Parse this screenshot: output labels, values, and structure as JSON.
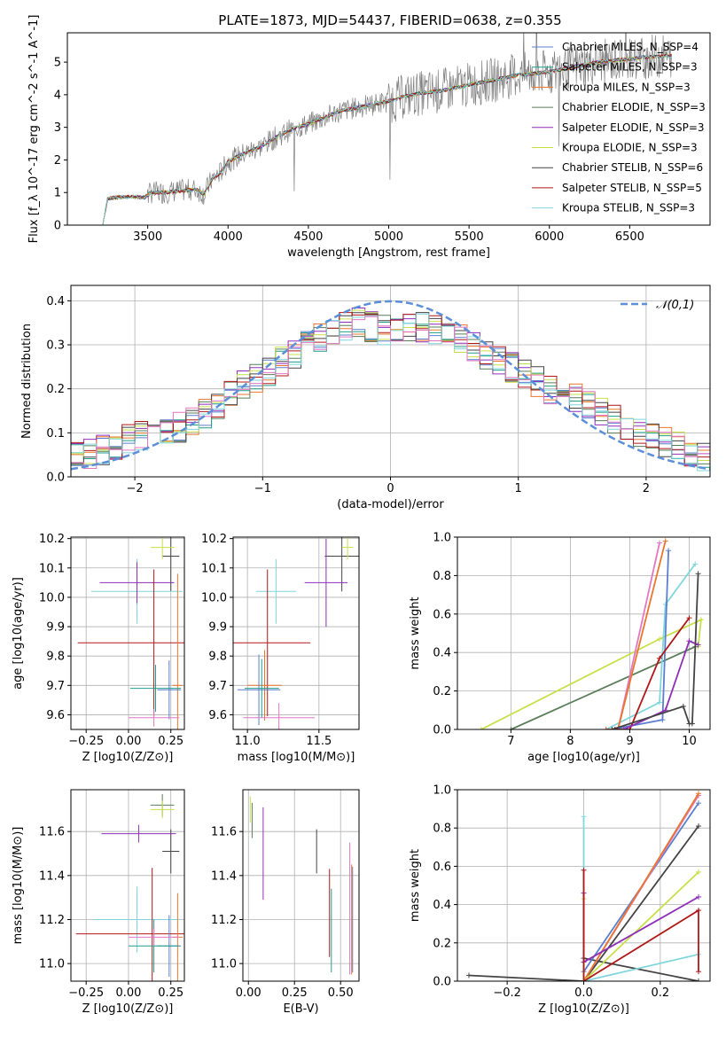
{
  "figure_title": "PLATE=1873, MJD=54437, FIBERID=0638, z=0.355",
  "colors": {
    "chabrier_miles": "#5b7fce",
    "salpeter_miles": "#1f9e89",
    "kroupa_miles": "#e8762c",
    "chabrier_elodie": "#5a7d5a",
    "salpeter_elodie": "#8e2fb8",
    "kroupa_elodie": "#c7e04a",
    "chabrier_stelib": "#444444",
    "salpeter_stelib": "#b01818",
    "kroupa_stelib": "#7fd6dc",
    "pink": "#e377c2",
    "gauss": "#5b8fd9",
    "data": "#808080"
  },
  "chart_data": [
    {
      "type": "line",
      "id": "spectrum",
      "title": "PLATE=1873, MJD=54437, FIBERID=0638, z=0.355",
      "xlabel": "wavelength [Angstrom, rest frame]",
      "ylabel": "Flux [f_λ 10^-17 erg cm^-2 s^-1 A^-1]",
      "xlim": [
        3000,
        7000
      ],
      "ylim": [
        0,
        5.9
      ],
      "xticks": [
        3500,
        4000,
        4500,
        5000,
        5500,
        6000,
        6500
      ],
      "yticks": [
        0,
        1,
        2,
        3,
        4,
        5
      ],
      "grid": false,
      "legend_position": "top-right",
      "legend": [
        {
          "label": "Chabrier MILES, N_SSP=4",
          "color": "#5b7fce"
        },
        {
          "label": "Salpeter MILES, N_SSP=3",
          "color": "#1f9e89"
        },
        {
          "label": "Kroupa MILES, N_SSP=3",
          "color": "#e8762c"
        },
        {
          "label": "Chabrier ELODIE, N_SSP=3",
          "color": "#5a7d5a"
        },
        {
          "label": "Salpeter ELODIE, N_SSP=3",
          "color": "#8e2fb8"
        },
        {
          "label": "Kroupa ELODIE, N_SSP=3",
          "color": "#c7e04a"
        },
        {
          "label": "Chabrier STELIB, N_SSP=6",
          "color": "#444444"
        },
        {
          "label": "Salpeter STELIB, N_SSP=5",
          "color": "#b01818"
        },
        {
          "label": "Kroupa STELIB, N_SSP=3",
          "color": "#7fd6dc"
        }
      ],
      "model_continuum": {
        "x": [
          3220,
          3250,
          3300,
          3400,
          3480,
          3520,
          3600,
          3700,
          3800,
          3850,
          3900,
          3950,
          4000,
          4100,
          4200,
          4300,
          4400,
          4500,
          4600,
          4700,
          4800,
          4900,
          5000,
          5100,
          5200,
          5300,
          5400,
          5500,
          5600,
          5700,
          5800,
          5900,
          6000,
          6100,
          6200,
          6300,
          6400,
          6500,
          6600,
          6750
        ],
        "y": [
          0,
          0.8,
          0.85,
          0.87,
          0.85,
          1.0,
          1.0,
          1.05,
          1.1,
          0.95,
          1.4,
          1.6,
          1.95,
          2.2,
          2.4,
          2.7,
          2.95,
          3.1,
          3.3,
          3.5,
          3.6,
          3.7,
          3.8,
          3.95,
          4.05,
          4.1,
          4.2,
          4.3,
          4.4,
          4.5,
          4.6,
          4.65,
          4.7,
          4.8,
          4.9,
          5.0,
          5.05,
          5.1,
          5.15,
          5.2
        ]
      }
    },
    {
      "type": "line",
      "id": "residual-histogram",
      "xlabel": "(data-model)/error",
      "ylabel": "Normed distribution",
      "xlim": [
        -2.5,
        2.5
      ],
      "ylim": [
        0,
        0.435
      ],
      "xticks": [
        -2,
        -1,
        0,
        1,
        2
      ],
      "yticks": [
        0.0,
        0.1,
        0.2,
        0.3,
        0.4
      ],
      "grid": true,
      "legend_position": "top-right",
      "gaussian_label": "𝒩(0,1)",
      "histogram_envelope": {
        "x": [
          -2.5,
          -2.25,
          -2.0,
          -1.75,
          -1.5,
          -1.25,
          -1.0,
          -0.75,
          -0.5,
          -0.25,
          0.0,
          0.25,
          0.5,
          0.75,
          1.0,
          1.25,
          1.5,
          1.75,
          2.0,
          2.25,
          2.5
        ],
        "y": [
          0.04,
          0.06,
          0.09,
          0.1,
          0.13,
          0.19,
          0.23,
          0.28,
          0.33,
          0.35,
          0.33,
          0.34,
          0.32,
          0.28,
          0.24,
          0.2,
          0.17,
          0.13,
          0.09,
          0.07,
          0.04
        ]
      }
    },
    {
      "type": "scatter",
      "id": "age-vs-metallicity",
      "xlabel": "Z [log10(Z/Z⊙)]",
      "ylabel": "age [log10(age/yr)]",
      "xlim": [
        -0.34,
        0.33
      ],
      "ylim": [
        9.55,
        10.205
      ],
      "xticks": [
        -0.25,
        0.0,
        0.25
      ],
      "yticks": [
        9.6,
        9.7,
        9.8,
        9.9,
        10.0,
        10.1,
        10.2
      ],
      "grid": true,
      "points": [
        {
          "x": 0.25,
          "y": 10.14,
          "xerr": 0.05,
          "yerr": 0.12,
          "color": "#444444"
        },
        {
          "x": 0.2,
          "y": 10.17,
          "xerr": 0.07,
          "yerr": 0.04,
          "color": "#c7e04a"
        },
        {
          "x": 0.05,
          "y": 10.02,
          "xerr": 0.27,
          "yerr": 0.11,
          "color": "#7fd6dc"
        },
        {
          "x": 0.05,
          "y": 10.05,
          "xerr": 0.22,
          "yerr": 0.07,
          "color": "#8e2fb8"
        },
        {
          "x": 0.15,
          "y": 9.845,
          "xerr": 0.45,
          "yerr": 0.25,
          "color": "#b01818"
        },
        {
          "x": 0.29,
          "y": 9.7,
          "xerr": 0.03,
          "yerr": 0.38,
          "color": "#e8762c"
        },
        {
          "x": 0.24,
          "y": 9.685,
          "xerr": 0.07,
          "yerr": 0.1,
          "color": "#5b7fce"
        },
        {
          "x": 0.16,
          "y": 9.69,
          "xerr": 0.15,
          "yerr": 0.08,
          "color": "#1f9e89"
        },
        {
          "x": 0.15,
          "y": 9.59,
          "xerr": 0.15,
          "yerr": 0.03,
          "color": "#e377c2"
        }
      ]
    },
    {
      "type": "scatter",
      "id": "age-vs-mass",
      "xlabel": "mass [log10(M/M⊙)]",
      "ylabel": "",
      "xlim": [
        10.9,
        11.78
      ],
      "ylim": [
        9.55,
        10.205
      ],
      "xticks": [
        11.0,
        11.5
      ],
      "yticks": [
        9.6,
        9.7,
        9.8,
        9.9,
        10.0,
        10.1,
        10.2
      ],
      "grid": true,
      "points": [
        {
          "x": 11.66,
          "y": 10.14,
          "xerr": 0.12,
          "yerr": 0.12,
          "color": "#444444"
        },
        {
          "x": 11.7,
          "y": 10.17,
          "xerr": 0.04,
          "yerr": 0.04,
          "color": "#c7e04a"
        },
        {
          "x": 11.2,
          "y": 10.02,
          "xerr": 0.14,
          "yerr": 0.11,
          "color": "#7fd6dc"
        },
        {
          "x": 11.55,
          "y": 10.05,
          "xerr": 0.15,
          "yerr": 0.15,
          "color": "#8e2fb8"
        },
        {
          "x": 11.14,
          "y": 9.845,
          "xerr": 0.3,
          "yerr": 0.25,
          "color": "#b01818"
        },
        {
          "x": 11.12,
          "y": 9.7,
          "xerr": 0.12,
          "yerr": 0.12,
          "color": "#e8762c"
        },
        {
          "x": 11.08,
          "y": 9.685,
          "xerr": 0.15,
          "yerr": 0.12,
          "color": "#5b7fce"
        },
        {
          "x": 11.1,
          "y": 9.69,
          "xerr": 0.12,
          "yerr": 0.1,
          "color": "#1f9e89"
        },
        {
          "x": 11.22,
          "y": 9.59,
          "xerr": 0.25,
          "yerr": 0.05,
          "color": "#e377c2"
        }
      ]
    },
    {
      "type": "line",
      "id": "mass-weight-vs-age",
      "xlabel": "age [log10(age/yr)]",
      "ylabel": "mass weight",
      "xlim": [
        6.1,
        10.35
      ],
      "ylim": [
        0,
        1.0
      ],
      "xticks": [
        7,
        8,
        9,
        10
      ],
      "yticks": [
        0.0,
        0.2,
        0.4,
        0.6,
        0.8,
        1.0
      ],
      "grid": true,
      "series": [
        {
          "color": "#c7e04a",
          "x": [
            6.5,
            9.5,
            10.2,
            10.15
          ],
          "y": [
            0.0,
            0.47,
            0.57,
            0.43
          ]
        },
        {
          "color": "#5a7d5a",
          "x": [
            7.0,
            10.1
          ],
          "y": [
            0.0,
            0.43
          ]
        },
        {
          "color": "#7fd6dc",
          "x": [
            8.6,
            9.5,
            9.6,
            10.1
          ],
          "y": [
            0.0,
            0.14,
            0.65,
            0.86
          ]
        },
        {
          "color": "#e377c2",
          "x": [
            8.6,
            8.8,
            9.5
          ],
          "y": [
            0.0,
            0.0,
            0.97
          ]
        },
        {
          "color": "#e8762c",
          "x": [
            8.6,
            8.8,
            9.6
          ],
          "y": [
            0.0,
            0.0,
            0.98
          ]
        },
        {
          "color": "#5b7fce",
          "x": [
            8.7,
            9.55,
            9.65
          ],
          "y": [
            0.0,
            0.05,
            0.93
          ]
        },
        {
          "color": "#b01818",
          "x": [
            8.75,
            9.0,
            9.5,
            10.0
          ],
          "y": [
            0.0,
            0.0,
            0.37,
            0.58
          ]
        },
        {
          "color": "#8e2fb8",
          "x": [
            8.9,
            9.6,
            10.0,
            10.15
          ],
          "y": [
            0.0,
            0.1,
            0.46,
            0.44
          ]
        },
        {
          "color": "#444444",
          "x": [
            8.7,
            9.9,
            10.0,
            10.05,
            10.15
          ],
          "y": [
            0.0,
            0.12,
            0.03,
            0.03,
            0.81
          ]
        }
      ]
    },
    {
      "type": "scatter",
      "id": "mass-vs-metallicity",
      "xlabel": "Z [log10(Z/Z⊙)]",
      "ylabel": "mass [log10(M/M⊙)]",
      "xlim": [
        -0.34,
        0.33
      ],
      "ylim": [
        10.92,
        11.79
      ],
      "xticks": [
        -0.25,
        0.0,
        0.25
      ],
      "yticks": [
        11.0,
        11.2,
        11.4,
        11.6
      ],
      "grid": true,
      "points": [
        {
          "x": 0.2,
          "y": 11.72,
          "xerr": 0.07,
          "yerr": 0.05,
          "color": "#5a7d5a"
        },
        {
          "x": 0.2,
          "y": 11.7,
          "xerr": 0.07,
          "yerr": 0.04,
          "color": "#c7e04a"
        },
        {
          "x": 0.25,
          "y": 11.51,
          "xerr": 0.05,
          "yerr": 0.1,
          "color": "#444444"
        },
        {
          "x": 0.06,
          "y": 11.59,
          "xerr": 0.22,
          "yerr": 0.04,
          "color": "#8e2fb8"
        },
        {
          "x": 0.05,
          "y": 11.2,
          "xerr": 0.25,
          "yerr": 0.15,
          "color": "#7fd6dc"
        },
        {
          "x": 0.14,
          "y": 11.135,
          "xerr": 0.45,
          "yerr": 0.3,
          "color": "#b01818"
        },
        {
          "x": 0.29,
          "y": 11.12,
          "xerr": 0.03,
          "yerr": 0.2,
          "color": "#e8762c"
        },
        {
          "x": 0.24,
          "y": 11.08,
          "xerr": 0.07,
          "yerr": 0.14,
          "color": "#5b7fce"
        },
        {
          "x": 0.15,
          "y": 11.08,
          "xerr": 0.15,
          "yerr": 0.12,
          "color": "#1f9e89"
        },
        {
          "x": 0.15,
          "y": 11.12,
          "xerr": 0.15,
          "yerr": 0.04,
          "color": "#e377c2"
        }
      ]
    },
    {
      "type": "scatter",
      "id": "mass-vs-ebv",
      "xlabel": "E(B-V)",
      "ylabel": "",
      "xlim": [
        -0.03,
        0.6
      ],
      "ylim": [
        10.92,
        11.79
      ],
      "xticks": [
        0.0,
        0.25,
        0.5
      ],
      "yticks": [
        11.0,
        11.2,
        11.4,
        11.6
      ],
      "grid": true,
      "points": [
        {
          "x": 0.01,
          "y": 11.7,
          "xerr": 0.0,
          "yerr": 0.06,
          "color": "#c7e04a"
        },
        {
          "x": 0.02,
          "y": 11.65,
          "xerr": 0.0,
          "yerr": 0.08,
          "color": "#5a7d5a"
        },
        {
          "x": 0.08,
          "y": 11.5,
          "xerr": 0.0,
          "yerr": 0.21,
          "color": "#8e2fb8"
        },
        {
          "x": 0.37,
          "y": 11.51,
          "xerr": 0.0,
          "yerr": 0.1,
          "color": "#444444"
        },
        {
          "x": 0.44,
          "y": 11.23,
          "xerr": 0.0,
          "yerr": 0.2,
          "color": "#b01818"
        },
        {
          "x": 0.45,
          "y": 11.15,
          "xerr": 0.0,
          "yerr": 0.19,
          "color": "#1f9e89"
        },
        {
          "x": 0.55,
          "y": 11.25,
          "xerr": 0.0,
          "yerr": 0.3,
          "color": "#e377c2"
        },
        {
          "x": 0.56,
          "y": 11.2,
          "xerr": 0.0,
          "yerr": 0.25,
          "color": "#e8762c"
        },
        {
          "x": 0.565,
          "y": 11.2,
          "xerr": 0.0,
          "yerr": 0.24,
          "color": "#5b7fce"
        }
      ]
    },
    {
      "type": "line",
      "id": "mass-weight-vs-metallicity",
      "xlabel": "Z [log10(Z/Z⊙)]",
      "ylabel": "mass weight",
      "xlim": [
        -0.33,
        0.33
      ],
      "ylim": [
        0,
        1.0
      ],
      "xticks": [
        -0.2,
        0.0,
        0.2
      ],
      "yticks": [
        0.0,
        0.2,
        0.4,
        0.6,
        0.8,
        1.0
      ],
      "grid": true,
      "series": [
        {
          "color": "#444444",
          "x": [
            -0.3,
            0.0,
            0.3
          ],
          "y": [
            0.03,
            0.0,
            0.81
          ]
        },
        {
          "color": "#444444",
          "x": [
            0.0,
            0.3
          ],
          "y": [
            0.12,
            0.0
          ]
        },
        {
          "color": "#7fd6dc",
          "x": [
            0.0,
            0.0,
            0.3
          ],
          "y": [
            0.86,
            0.0,
            0.14
          ]
        },
        {
          "color": "#5b7fce",
          "x": [
            0.0,
            0.3
          ],
          "y": [
            0.05,
            0.93
          ]
        },
        {
          "color": "#e377c2",
          "x": [
            0.0,
            0.3
          ],
          "y": [
            0.0,
            0.97
          ]
        },
        {
          "color": "#e8762c",
          "x": [
            0.0,
            0.3
          ],
          "y": [
            0.0,
            0.98
          ]
        },
        {
          "color": "#c7e04a",
          "x": [
            0.0,
            0.0,
            0.3
          ],
          "y": [
            0.43,
            0.0,
            0.57
          ]
        },
        {
          "color": "#8e2fb8",
          "x": [
            0.0,
            0.0,
            0.3
          ],
          "y": [
            0.46,
            0.1,
            0.44
          ]
        },
        {
          "color": "#b01818",
          "x": [
            0.0,
            0.0,
            0.3,
            0.3
          ],
          "y": [
            0.58,
            0.0,
            0.37,
            0.05
          ]
        }
      ]
    }
  ]
}
